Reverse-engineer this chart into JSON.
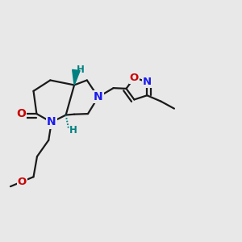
{
  "bg_color": "#e8e8e8",
  "bond_color": "#1a1a1a",
  "bond_width": 1.6,
  "atom_colors": {
    "N": "#1a1aee",
    "O": "#cc0000",
    "H_stereo": "#008080",
    "C": "#1a1a1a"
  },
  "font_size_atom": 10,
  "font_size_small": 8.5
}
